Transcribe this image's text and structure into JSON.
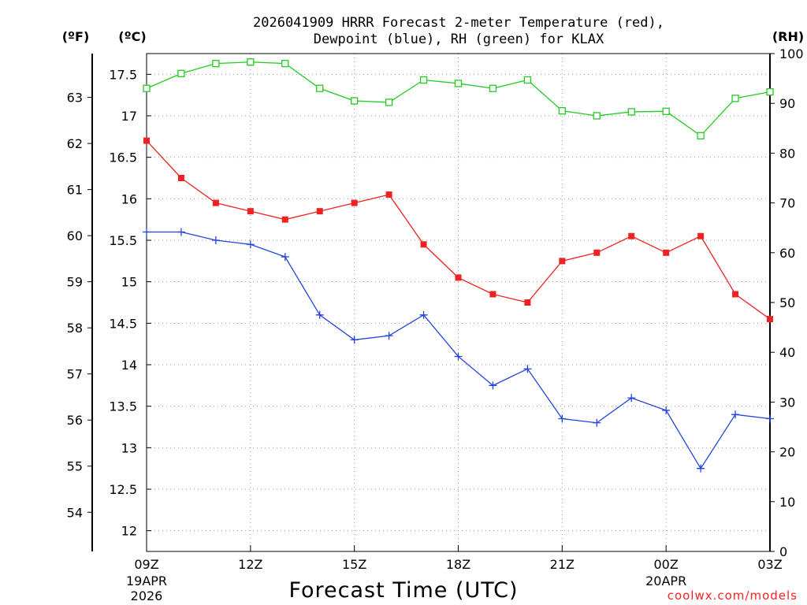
{
  "chart_data": {
    "type": "line",
    "title_lines": [
      "2026041909 HRRR Forecast 2-meter Temperature (red),",
      "Dewpoint (blue), RH (green) for KLAX"
    ],
    "xlabel": "Forecast Time (UTC)",
    "credit": "coolwx.com/models",
    "units": {
      "fahrenheit": "(ºF)",
      "celsius": "(ºC)",
      "rh": "(RH)"
    },
    "x_hours": [
      0,
      1,
      2,
      3,
      4,
      5,
      6,
      7,
      8,
      9,
      10,
      11,
      12,
      13,
      14,
      15,
      16,
      17,
      18
    ],
    "x_ticks": [
      {
        "hour": 0,
        "label": "09Z",
        "sub": [
          "19APR",
          "2026"
        ]
      },
      {
        "hour": 3,
        "label": "12Z",
        "sub": []
      },
      {
        "hour": 6,
        "label": "15Z",
        "sub": []
      },
      {
        "hour": 9,
        "label": "18Z",
        "sub": []
      },
      {
        "hour": 12,
        "label": "21Z",
        "sub": []
      },
      {
        "hour": 15,
        "label": "00Z",
        "sub": [
          "20APR"
        ]
      },
      {
        "hour": 18,
        "label": "03Z",
        "sub": []
      }
    ],
    "celsius_axis": {
      "range": [
        11.75,
        17.75
      ],
      "ticks": [
        "12",
        "12.5",
        "13",
        "13.5",
        "14",
        "14.5",
        "15",
        "15.5",
        "16",
        "16.5",
        "17",
        "17.5"
      ]
    },
    "fahrenheit_axis": {
      "range": [
        53.15,
        63.95
      ],
      "ticks": [
        "54",
        "55",
        "56",
        "57",
        "58",
        "59",
        "60",
        "61",
        "62",
        "63"
      ]
    },
    "rh_axis": {
      "range": [
        0,
        100
      ],
      "ticks": [
        "0",
        "10",
        "20",
        "30",
        "40",
        "50",
        "60",
        "70",
        "80",
        "90",
        "100"
      ]
    },
    "series": [
      {
        "name": "2-meter Temperature",
        "axis": "celsius",
        "color": "#ee2222",
        "marker": "filled-square",
        "values": [
          16.7,
          16.25,
          15.95,
          15.85,
          15.75,
          15.85,
          15.95,
          16.05,
          15.45,
          15.05,
          14.85,
          14.75,
          15.25,
          15.35,
          15.55,
          15.35,
          15.55,
          14.85,
          14.55
        ]
      },
      {
        "name": "Dewpoint",
        "axis": "celsius",
        "color": "#2244dd",
        "marker": "plus",
        "values": [
          15.6,
          15.6,
          15.5,
          15.45,
          15.3,
          14.6,
          14.3,
          14.35,
          14.6,
          14.1,
          13.75,
          13.95,
          13.35,
          13.3,
          13.6,
          13.45,
          12.75,
          13.4,
          13.35
        ]
      },
      {
        "name": "RH",
        "axis": "rh",
        "color": "#22cc22",
        "marker": "open-square",
        "values": [
          93,
          96,
          98,
          98.3,
          98,
          93,
          90.5,
          90.2,
          94.7,
          94,
          93,
          94.7,
          88.5,
          87.5,
          88.3,
          88.4,
          83.5,
          91,
          92.3
        ]
      }
    ]
  }
}
